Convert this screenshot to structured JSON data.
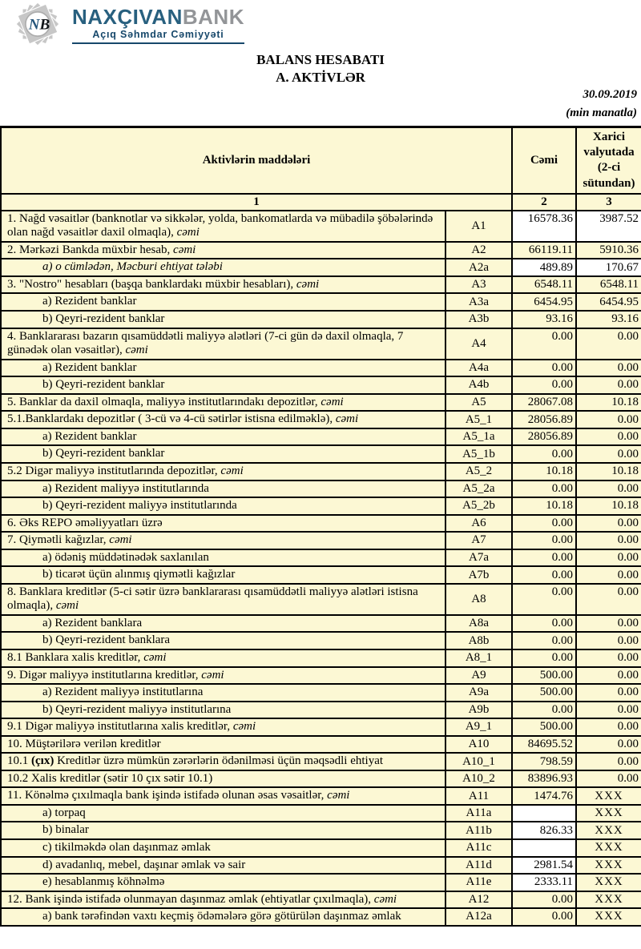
{
  "logo": {
    "monogram": "NB",
    "name_primary": "NAXÇIVAN",
    "name_secondary": "BANK",
    "subtitle": "Açıq Səhmdar Cəmiyyəti",
    "colors": {
      "primary_blue": "#28607f",
      "gray": "#939598",
      "subtitle_blue": "#17486b"
    }
  },
  "title": {
    "line1": "BALANS HESABATI",
    "line2": "A. AKTİVLƏR"
  },
  "meta": {
    "date": "30.09.2019",
    "unit": "(min manatla)"
  },
  "table": {
    "colors": {
      "cell_yellow": "#fcf8d4",
      "cell_white": "#ffffff",
      "border": "#000000"
    },
    "header": {
      "items": "Aktivlərin  maddələri",
      "total": "Cəmi",
      "foreign": "Xarici valyutada (2-ci sütundan)",
      "col_numbers": [
        "1",
        "2",
        "3"
      ]
    },
    "rows": [
      {
        "code": "A1",
        "tall": true,
        "indent": false,
        "segments": [
          {
            "text": "1. Nağd vəsaitlər (banknotlar və sikkələr, yolda, bankomatlarda və mübadilə şöbələrində olan nağd vəsaitlər daxil olmaqla), ",
            "style": "normal"
          },
          {
            "text": "cəmi",
            "style": "italic"
          }
        ],
        "cemi": {
          "value": "16578.36",
          "white": true
        },
        "xarici": {
          "value": "3987.52",
          "white": true
        }
      },
      {
        "code": "A2",
        "tall": false,
        "indent": false,
        "segments": [
          {
            "text": "2. Mərkəzi Bankda müxbir hesab, ",
            "style": "normal"
          },
          {
            "text": "cəmi",
            "style": "italic"
          }
        ],
        "cemi": {
          "value": "66119.11",
          "white": false
        },
        "xarici": {
          "value": "5910.36",
          "white": false
        }
      },
      {
        "code": "A2a",
        "tall": false,
        "indent": true,
        "segments": [
          {
            "text": "a) o cümlədən, Məcburi ehtiyat tələbi",
            "style": "italic"
          }
        ],
        "cemi": {
          "value": "489.89",
          "white": true
        },
        "xarici": {
          "value": "170.67",
          "white": true
        }
      },
      {
        "code": "A3",
        "tall": false,
        "indent": false,
        "segments": [
          {
            "text": "3. \"Nostro\" hesabları (başqa banklardakı müxbir hesabları), ",
            "style": "normal"
          },
          {
            "text": "cəmi",
            "style": "italic"
          }
        ],
        "cemi": {
          "value": "6548.11",
          "white": false
        },
        "xarici": {
          "value": "6548.11",
          "white": false
        }
      },
      {
        "code": "A3a",
        "tall": false,
        "indent": true,
        "segments": [
          {
            "text": "a) Rezident banklar",
            "style": "normal"
          }
        ],
        "cemi": {
          "value": "6454.95",
          "white": false
        },
        "xarici": {
          "value": "6454.95",
          "white": false
        }
      },
      {
        "code": "A3b",
        "tall": false,
        "indent": true,
        "segments": [
          {
            "text": "b) Qeyri-rezident banklar",
            "style": "normal"
          }
        ],
        "cemi": {
          "value": "93.16",
          "white": false
        },
        "xarici": {
          "value": "93.16",
          "white": false
        }
      },
      {
        "code": "A4",
        "tall": true,
        "indent": false,
        "segments": [
          {
            "text": "4. Banklararası bazarın qısamüddətli maliyyə alətləri (7-ci gün də daxil olmaqla, 7 günədək olan vəsaitlər), ",
            "style": "normal"
          },
          {
            "text": "cəmi",
            "style": "italic"
          }
        ],
        "cemi": {
          "value": "0.00",
          "white": false
        },
        "xarici": {
          "value": "0.00",
          "white": false
        }
      },
      {
        "code": "A4a",
        "tall": false,
        "indent": true,
        "segments": [
          {
            "text": "a) Rezident banklar",
            "style": "normal"
          }
        ],
        "cemi": {
          "value": "0.00",
          "white": false
        },
        "xarici": {
          "value": "0.00",
          "white": false
        }
      },
      {
        "code": "A4b",
        "tall": false,
        "indent": true,
        "segments": [
          {
            "text": "b) Qeyri-rezident banklar",
            "style": "normal"
          }
        ],
        "cemi": {
          "value": "0.00",
          "white": false
        },
        "xarici": {
          "value": "0.00",
          "white": false
        }
      },
      {
        "code": "A5",
        "tall": false,
        "indent": false,
        "segments": [
          {
            "text": "5. Banklar da daxil olmaqla, maliyyə institutlarındakı depozitlər, ",
            "style": "normal"
          },
          {
            "text": "cəmi",
            "style": "italic"
          }
        ],
        "cemi": {
          "value": "28067.08",
          "white": false
        },
        "xarici": {
          "value": "10.18",
          "white": false
        }
      },
      {
        "code": "A5_1",
        "tall": false,
        "indent": false,
        "segments": [
          {
            "text": "5.1.Banklardakı depozitlər ( 3-cü və 4-cü sətirlər istisna edilməklə), ",
            "style": "normal"
          },
          {
            "text": "cəmi",
            "style": "italic"
          }
        ],
        "cemi": {
          "value": "28056.89",
          "white": false
        },
        "xarici": {
          "value": "0.00",
          "white": false
        }
      },
      {
        "code": "A5_1a",
        "tall": false,
        "indent": true,
        "segments": [
          {
            "text": "a) Rezident banklar",
            "style": "normal"
          }
        ],
        "cemi": {
          "value": "28056.89",
          "white": false
        },
        "xarici": {
          "value": "0.00",
          "white": false
        }
      },
      {
        "code": "A5_1b",
        "tall": false,
        "indent": true,
        "segments": [
          {
            "text": "b) Qeyri-rezident banklar",
            "style": "normal"
          }
        ],
        "cemi": {
          "value": "0.00",
          "white": false
        },
        "xarici": {
          "value": "0.00",
          "white": false
        }
      },
      {
        "code": "A5_2",
        "tall": false,
        "indent": false,
        "segments": [
          {
            "text": "5.2 Digər maliyyə institutlarında depozitlər, ",
            "style": "normal"
          },
          {
            "text": "cəmi",
            "style": "italic"
          }
        ],
        "cemi": {
          "value": "10.18",
          "white": false
        },
        "xarici": {
          "value": "10.18",
          "white": false
        }
      },
      {
        "code": "A5_2a",
        "tall": false,
        "indent": true,
        "segments": [
          {
            "text": "a) Rezident maliyyə institutlarında",
            "style": "normal"
          }
        ],
        "cemi": {
          "value": "0.00",
          "white": false
        },
        "xarici": {
          "value": "0.00",
          "white": false
        }
      },
      {
        "code": "A5_2b",
        "tall": false,
        "indent": true,
        "segments": [
          {
            "text": "b) Qeyri-rezident maliyyə institutlarında",
            "style": "normal"
          }
        ],
        "cemi": {
          "value": "10.18",
          "white": false
        },
        "xarici": {
          "value": "10.18",
          "white": false
        }
      },
      {
        "code": "A6",
        "tall": false,
        "indent": false,
        "segments": [
          {
            "text": "6. Əks REPO əməliyyatları üzrə",
            "style": "normal"
          }
        ],
        "cemi": {
          "value": "0.00",
          "white": false
        },
        "xarici": {
          "value": "0.00",
          "white": false
        }
      },
      {
        "code": "A7",
        "tall": false,
        "indent": false,
        "segments": [
          {
            "text": "7. Qiymətli kağızlar, ",
            "style": "normal"
          },
          {
            "text": "cəmi",
            "style": "italic"
          }
        ],
        "cemi": {
          "value": "0.00",
          "white": false
        },
        "xarici": {
          "value": "0.00",
          "white": false
        }
      },
      {
        "code": "A7a",
        "tall": false,
        "indent": true,
        "segments": [
          {
            "text": "a) ödəniş müddətinədək saxlanılan",
            "style": "normal"
          }
        ],
        "cemi": {
          "value": "0.00",
          "white": false
        },
        "xarici": {
          "value": "0.00",
          "white": false
        }
      },
      {
        "code": "A7b",
        "tall": false,
        "indent": true,
        "segments": [
          {
            "text": "b) ticarət üçün alınmış qiymətli kağızlar",
            "style": "normal"
          }
        ],
        "cemi": {
          "value": "0.00",
          "white": false
        },
        "xarici": {
          "value": "0.00",
          "white": false
        }
      },
      {
        "code": "A8",
        "tall": true,
        "indent": false,
        "segments": [
          {
            "text": "8. Banklara kreditlər (5-ci sətir üzrə banklararası qısamüddətli maliyyə alətləri istisna olmaqla), ",
            "style": "normal"
          },
          {
            "text": "cəmi",
            "style": "italic"
          }
        ],
        "cemi": {
          "value": "0.00",
          "white": false
        },
        "xarici": {
          "value": "0.00",
          "white": false
        }
      },
      {
        "code": "A8a",
        "tall": false,
        "indent": true,
        "segments": [
          {
            "text": "a) Rezident banklara",
            "style": "normal"
          }
        ],
        "cemi": {
          "value": "0.00",
          "white": false
        },
        "xarici": {
          "value": "0.00",
          "white": false
        }
      },
      {
        "code": "A8b",
        "tall": false,
        "indent": true,
        "segments": [
          {
            "text": "b) Qeyri-rezident banklara",
            "style": "normal"
          }
        ],
        "cemi": {
          "value": "0.00",
          "white": false
        },
        "xarici": {
          "value": "0.00",
          "white": false
        }
      },
      {
        "code": "A8_1",
        "tall": false,
        "indent": false,
        "segments": [
          {
            "text": "8.1 Banklara xalis kreditlər, ",
            "style": "normal"
          },
          {
            "text": "cəmi",
            "style": "italic"
          }
        ],
        "cemi": {
          "value": "0.00",
          "white": false
        },
        "xarici": {
          "value": "0.00",
          "white": false
        }
      },
      {
        "code": "A9",
        "tall": false,
        "indent": false,
        "segments": [
          {
            "text": "9. Digər maliyyə institutlarına kreditlər, ",
            "style": "normal"
          },
          {
            "text": "cəmi",
            "style": "italic"
          }
        ],
        "cemi": {
          "value": "500.00",
          "white": false
        },
        "xarici": {
          "value": "0.00",
          "white": false
        }
      },
      {
        "code": "A9a",
        "tall": false,
        "indent": true,
        "segments": [
          {
            "text": "a) Rezident maliyyə institutlarına",
            "style": "normal"
          }
        ],
        "cemi": {
          "value": "500.00",
          "white": false
        },
        "xarici": {
          "value": "0.00",
          "white": false
        }
      },
      {
        "code": "A9b",
        "tall": false,
        "indent": true,
        "segments": [
          {
            "text": "b) Qeyri-rezident maliyyə institutlarına",
            "style": "normal"
          }
        ],
        "cemi": {
          "value": "0.00",
          "white": false
        },
        "xarici": {
          "value": "0.00",
          "white": false
        }
      },
      {
        "code": "A9_1",
        "tall": false,
        "indent": false,
        "segments": [
          {
            "text": "9.1 Digər maliyyə institutlarına xalis kreditlər, ",
            "style": "normal"
          },
          {
            "text": "cəmi",
            "style": "italic"
          }
        ],
        "cemi": {
          "value": "500.00",
          "white": false
        },
        "xarici": {
          "value": "0.00",
          "white": false
        }
      },
      {
        "code": "A10",
        "tall": false,
        "indent": false,
        "segments": [
          {
            "text": "10. Müştərilərə verilən kreditlər",
            "style": "normal"
          }
        ],
        "cemi": {
          "value": "84695.52",
          "white": false
        },
        "xarici": {
          "value": "0.00",
          "white": false
        }
      },
      {
        "code": "A10_1",
        "tall": false,
        "indent": false,
        "segments": [
          {
            "text": "10.1 ",
            "style": "normal"
          },
          {
            "text": "(çıx)",
            "style": "bold"
          },
          {
            "text": " Kreditlər üzrə mümkün zərərlərin ödənilməsi üçün məqsədli ehtiyat",
            "style": "normal"
          }
        ],
        "cemi": {
          "value": "798.59",
          "white": false
        },
        "xarici": {
          "value": "0.00",
          "white": false
        }
      },
      {
        "code": "A10_2",
        "tall": false,
        "indent": false,
        "segments": [
          {
            "text": "10.2 Xalis kreditlər (sətir 10 çıx sətir 10.1)",
            "style": "normal"
          }
        ],
        "cemi": {
          "value": "83896.93",
          "white": false
        },
        "xarici": {
          "value": "0.00",
          "white": false
        }
      },
      {
        "code": "A11",
        "tall": false,
        "indent": false,
        "segments": [
          {
            "text": "11. Könəlmə çıxılmaqla bank işində istifadə olunan əsas vəsaitlər, ",
            "style": "normal"
          },
          {
            "text": "cəmi",
            "style": "italic"
          }
        ],
        "cemi": {
          "value": "1474.76",
          "white": false
        },
        "xarici": {
          "value": "XXX",
          "white": false
        }
      },
      {
        "code": "A11a",
        "tall": false,
        "indent": true,
        "segments": [
          {
            "text": "a) torpaq",
            "style": "normal"
          }
        ],
        "cemi": {
          "value": "",
          "white": true
        },
        "xarici": {
          "value": "XXX",
          "white": false
        }
      },
      {
        "code": "A11b",
        "tall": false,
        "indent": true,
        "segments": [
          {
            "text": "b) binalar",
            "style": "normal"
          }
        ],
        "cemi": {
          "value": "826.33",
          "white": true
        },
        "xarici": {
          "value": "XXX",
          "white": false
        }
      },
      {
        "code": "A11c",
        "tall": false,
        "indent": true,
        "segments": [
          {
            "text": "c) tikilməkdə olan daşınmaz əmlak",
            "style": "normal"
          }
        ],
        "cemi": {
          "value": "",
          "white": true
        },
        "xarici": {
          "value": "XXX",
          "white": false
        }
      },
      {
        "code": "A11d",
        "tall": false,
        "indent": true,
        "segments": [
          {
            "text": "d) avadanlıq, mebel, daşınar əmlak və sair",
            "style": "normal"
          }
        ],
        "cemi": {
          "value": "2981.54",
          "white": true
        },
        "xarici": {
          "value": "XXX",
          "white": false
        }
      },
      {
        "code": "A11e",
        "tall": false,
        "indent": true,
        "segments": [
          {
            "text": "e) hesablanmış köhnəlmə",
            "style": "normal"
          }
        ],
        "cemi": {
          "value": "2333.11",
          "white": true
        },
        "xarici": {
          "value": "XXX",
          "white": false
        }
      },
      {
        "code": "A12",
        "tall": false,
        "indent": false,
        "segments": [
          {
            "text": "12. Bank işində istifadə olunmayan daşınmaz əmlak (ehtiyatlar çıxılmaqla), ",
            "style": "normal"
          },
          {
            "text": "cəmi",
            "style": "italic"
          }
        ],
        "cemi": {
          "value": "0.00",
          "white": false
        },
        "xarici": {
          "value": "XXX",
          "white": false
        }
      },
      {
        "code": "A12a",
        "tall": false,
        "indent": true,
        "segments": [
          {
            "text": "a) bank tərəfindən vaxtı keçmiş ödəmələrə görə götürülən daşınmaz əmlak",
            "style": "normal"
          }
        ],
        "cemi": {
          "value": "0.00",
          "white": false
        },
        "xarici": {
          "value": "XXX",
          "white": false
        }
      }
    ]
  }
}
